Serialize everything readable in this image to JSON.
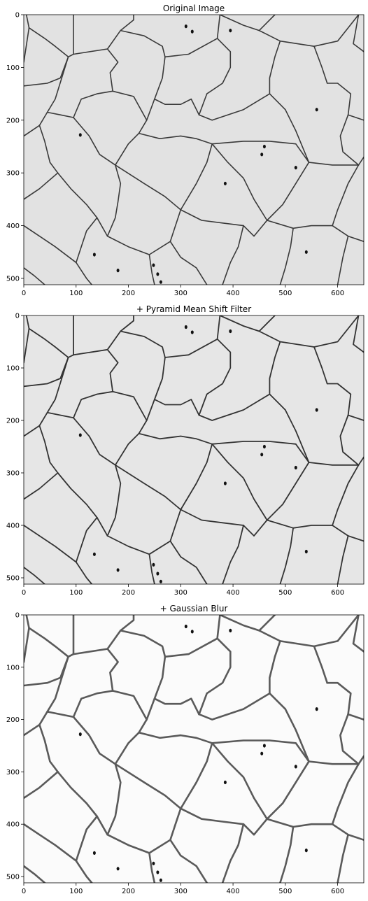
{
  "panels": [
    {
      "title": "Original Image",
      "background": "#e2e2e2",
      "edge_color": "#3a3a3a",
      "extent": {
        "x": [
          0,
          650
        ],
        "y": [
          512,
          0
        ]
      },
      "x_ticks": [
        "0",
        "100",
        "200",
        "300",
        "400",
        "500",
        "600"
      ],
      "y_ticks": [
        "0",
        "100",
        "200",
        "300",
        "400",
        "500"
      ],
      "x_tick_values": [
        0,
        100,
        200,
        300,
        400,
        500,
        600
      ],
      "y_tick_values": [
        0,
        100,
        200,
        300,
        400,
        500
      ]
    },
    {
      "title": "+ Pyramid Mean Shift Filter",
      "background": "#e6e6e6",
      "edge_color": "#333333",
      "extent": {
        "x": [
          0,
          650
        ],
        "y": [
          512,
          0
        ]
      },
      "x_ticks": [
        "0",
        "100",
        "200",
        "300",
        "400",
        "500",
        "600"
      ],
      "y_ticks": [
        "0",
        "100",
        "200",
        "300",
        "400",
        "500"
      ],
      "x_tick_values": [
        0,
        100,
        200,
        300,
        400,
        500,
        600
      ],
      "y_tick_values": [
        0,
        100,
        200,
        300,
        400,
        500
      ]
    },
    {
      "title": "+ Gaussian Blur",
      "background": "#fbfbfb",
      "edge_color": "#5a5a5a",
      "extent": {
        "x": [
          0,
          650
        ],
        "y": [
          512,
          0
        ]
      },
      "x_ticks": [
        "0",
        "100",
        "200",
        "300",
        "400",
        "500",
        "600"
      ],
      "y_ticks": [
        "0",
        "100",
        "200",
        "300",
        "400",
        "500"
      ],
      "x_tick_values": [
        0,
        100,
        200,
        300,
        400,
        500,
        600
      ],
      "y_tick_values": [
        0,
        100,
        200,
        300,
        400,
        500
      ]
    }
  ],
  "grain_boundaries": [
    [
      [
        5,
        0
      ],
      [
        10,
        25
      ],
      [
        0,
        90
      ]
    ],
    [
      [
        10,
        25
      ],
      [
        40,
        45
      ],
      [
        60,
        60
      ],
      [
        85,
        80
      ],
      [
        95,
        75
      ],
      [
        95,
        0
      ]
    ],
    [
      [
        85,
        80
      ],
      [
        70,
        120
      ],
      [
        45,
        130
      ],
      [
        0,
        135
      ]
    ],
    [
      [
        95,
        75
      ],
      [
        160,
        65
      ],
      [
        185,
        30
      ],
      [
        210,
        10
      ],
      [
        210,
        0
      ]
    ],
    [
      [
        160,
        65
      ],
      [
        180,
        90
      ],
      [
        165,
        110
      ],
      [
        170,
        145
      ]
    ],
    [
      [
        185,
        30
      ],
      [
        230,
        40
      ],
      [
        265,
        60
      ],
      [
        270,
        80
      ]
    ],
    [
      [
        270,
        80
      ],
      [
        315,
        75
      ],
      [
        370,
        45
      ],
      [
        375,
        0
      ]
    ],
    [
      [
        370,
        45
      ],
      [
        395,
        70
      ],
      [
        395,
        100
      ],
      [
        380,
        130
      ],
      [
        350,
        150
      ],
      [
        335,
        190
      ]
    ],
    [
      [
        375,
        0
      ],
      [
        420,
        20
      ],
      [
        450,
        30
      ],
      [
        480,
        0
      ]
    ],
    [
      [
        450,
        30
      ],
      [
        490,
        50
      ],
      [
        555,
        60
      ],
      [
        600,
        50
      ],
      [
        640,
        0
      ]
    ],
    [
      [
        490,
        50
      ],
      [
        480,
        80
      ],
      [
        470,
        120
      ],
      [
        470,
        150
      ],
      [
        490,
        170
      ],
      [
        500,
        180
      ]
    ],
    [
      [
        555,
        60
      ],
      [
        570,
        100
      ],
      [
        580,
        130
      ]
    ],
    [
      [
        580,
        130
      ],
      [
        600,
        130
      ],
      [
        625,
        150
      ],
      [
        620,
        190
      ]
    ],
    [
      [
        640,
        0
      ],
      [
        630,
        55
      ],
      [
        650,
        70
      ]
    ],
    [
      [
        620,
        190
      ],
      [
        650,
        200
      ]
    ],
    [
      [
        470,
        150
      ],
      [
        420,
        180
      ],
      [
        360,
        200
      ],
      [
        335,
        190
      ]
    ],
    [
      [
        270,
        80
      ],
      [
        265,
        120
      ],
      [
        250,
        160
      ],
      [
        235,
        200
      ],
      [
        220,
        225
      ]
    ],
    [
      [
        250,
        160
      ],
      [
        270,
        170
      ],
      [
        300,
        170
      ],
      [
        320,
        160
      ],
      [
        335,
        190
      ]
    ],
    [
      [
        170,
        145
      ],
      [
        210,
        155
      ],
      [
        235,
        200
      ]
    ],
    [
      [
        170,
        145
      ],
      [
        140,
        150
      ],
      [
        110,
        160
      ],
      [
        95,
        195
      ]
    ],
    [
      [
        95,
        195
      ],
      [
        70,
        190
      ],
      [
        45,
        185
      ],
      [
        30,
        210
      ]
    ],
    [
      [
        45,
        185
      ],
      [
        60,
        160
      ],
      [
        85,
        80
      ]
    ],
    [
      [
        30,
        210
      ],
      [
        0,
        230
      ]
    ],
    [
      [
        30,
        210
      ],
      [
        40,
        240
      ],
      [
        50,
        280
      ],
      [
        65,
        300
      ]
    ],
    [
      [
        95,
        195
      ],
      [
        125,
        230
      ],
      [
        145,
        265
      ],
      [
        175,
        285
      ]
    ],
    [
      [
        220,
        225
      ],
      [
        200,
        245
      ],
      [
        175,
        285
      ]
    ],
    [
      [
        220,
        225
      ],
      [
        260,
        235
      ],
      [
        300,
        230
      ],
      [
        330,
        235
      ],
      [
        360,
        245
      ]
    ],
    [
      [
        360,
        245
      ],
      [
        420,
        240
      ],
      [
        470,
        240
      ],
      [
        520,
        245
      ],
      [
        545,
        280
      ]
    ],
    [
      [
        500,
        180
      ],
      [
        520,
        220
      ],
      [
        545,
        280
      ]
    ],
    [
      [
        545,
        280
      ],
      [
        590,
        285
      ],
      [
        640,
        285
      ],
      [
        650,
        270
      ]
    ],
    [
      [
        620,
        190
      ],
      [
        605,
        230
      ],
      [
        610,
        260
      ],
      [
        640,
        285
      ]
    ],
    [
      [
        65,
        300
      ],
      [
        30,
        330
      ],
      [
        0,
        350
      ]
    ],
    [
      [
        65,
        300
      ],
      [
        90,
        330
      ],
      [
        120,
        360
      ],
      [
        140,
        385
      ]
    ],
    [
      [
        175,
        285
      ],
      [
        185,
        320
      ],
      [
        180,
        355
      ],
      [
        175,
        385
      ],
      [
        160,
        420
      ]
    ],
    [
      [
        175,
        285
      ],
      [
        230,
        320
      ],
      [
        270,
        345
      ],
      [
        300,
        370
      ]
    ],
    [
      [
        360,
        245
      ],
      [
        350,
        280
      ],
      [
        330,
        320
      ],
      [
        300,
        370
      ]
    ],
    [
      [
        360,
        245
      ],
      [
        390,
        280
      ],
      [
        420,
        310
      ],
      [
        440,
        350
      ],
      [
        465,
        390
      ]
    ],
    [
      [
        545,
        280
      ],
      [
        520,
        320
      ],
      [
        495,
        360
      ],
      [
        465,
        390
      ]
    ],
    [
      [
        640,
        285
      ],
      [
        620,
        320
      ],
      [
        600,
        370
      ],
      [
        590,
        400
      ]
    ],
    [
      [
        590,
        400
      ],
      [
        550,
        400
      ],
      [
        515,
        405
      ],
      [
        465,
        390
      ]
    ],
    [
      [
        590,
        400
      ],
      [
        620,
        420
      ],
      [
        650,
        430
      ]
    ],
    [
      [
        140,
        385
      ],
      [
        120,
        410
      ],
      [
        110,
        440
      ],
      [
        100,
        470
      ]
    ],
    [
      [
        140,
        385
      ],
      [
        160,
        420
      ],
      [
        200,
        440
      ],
      [
        240,
        455
      ]
    ],
    [
      [
        0,
        400
      ],
      [
        30,
        420
      ],
      [
        60,
        440
      ],
      [
        100,
        470
      ]
    ],
    [
      [
        100,
        470
      ],
      [
        120,
        500
      ],
      [
        130,
        512
      ]
    ],
    [
      [
        240,
        455
      ],
      [
        245,
        490
      ],
      [
        250,
        512
      ]
    ],
    [
      [
        300,
        370
      ],
      [
        290,
        400
      ],
      [
        280,
        430
      ],
      [
        240,
        455
      ]
    ],
    [
      [
        300,
        370
      ],
      [
        340,
        390
      ],
      [
        380,
        395
      ],
      [
        420,
        400
      ]
    ],
    [
      [
        465,
        390
      ],
      [
        440,
        420
      ],
      [
        420,
        400
      ]
    ],
    [
      [
        420,
        400
      ],
      [
        410,
        440
      ],
      [
        395,
        470
      ],
      [
        380,
        512
      ]
    ],
    [
      [
        280,
        430
      ],
      [
        300,
        460
      ],
      [
        330,
        480
      ],
      [
        350,
        512
      ]
    ],
    [
      [
        515,
        405
      ],
      [
        510,
        440
      ],
      [
        500,
        480
      ],
      [
        490,
        512
      ]
    ],
    [
      [
        620,
        420
      ],
      [
        610,
        460
      ],
      [
        600,
        512
      ]
    ],
    [
      [
        0,
        480
      ],
      [
        20,
        495
      ],
      [
        40,
        512
      ]
    ]
  ],
  "pores": [
    [
      310,
      22
    ],
    [
      322,
      32
    ],
    [
      248,
      475
    ],
    [
      256,
      492
    ],
    [
      262,
      507
    ],
    [
      180,
      485
    ],
    [
      135,
      455
    ],
    [
      460,
      250
    ],
    [
      455,
      265
    ],
    [
      385,
      320
    ],
    [
      520,
      290
    ],
    [
      108,
      228
    ],
    [
      560,
      180
    ],
    [
      540,
      450
    ],
    [
      395,
      30
    ]
  ]
}
